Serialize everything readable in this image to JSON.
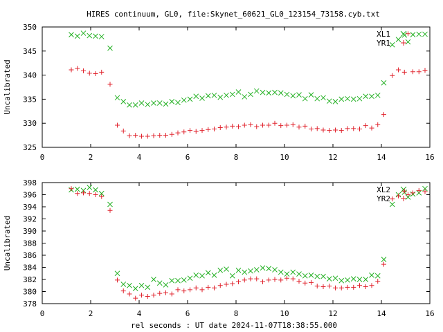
{
  "title": "HIRES continuum, GL0, file:Skynet_60621_GL0_123154_73158.cyb.txt",
  "xlabel": "rel seconds : UT date 2024-11-07T18:38:55.000",
  "chart_data": [
    {
      "type": "scatter",
      "ylabel": "Uncalibrated",
      "xlim": [
        0,
        16
      ],
      "ylim": [
        325,
        350
      ],
      "xticks": [
        0,
        2,
        4,
        6,
        8,
        10,
        12,
        14,
        16
      ],
      "yticks": [
        325,
        330,
        335,
        340,
        345,
        350
      ],
      "legend_position": "top-right",
      "series": [
        {
          "name": "XL1",
          "marker": "x",
          "color": "#22b022",
          "x": [
            1.2,
            1.45,
            1.7,
            1.95,
            2.2,
            2.45,
            2.8,
            3.1,
            3.35,
            3.6,
            3.85,
            4.1,
            4.35,
            4.6,
            4.85,
            5.1,
            5.35,
            5.6,
            5.85,
            6.1,
            6.35,
            6.6,
            6.85,
            7.1,
            7.35,
            7.6,
            7.85,
            8.1,
            8.35,
            8.6,
            8.85,
            9.1,
            9.35,
            9.6,
            9.85,
            10.1,
            10.35,
            10.6,
            10.85,
            11.1,
            11.35,
            11.6,
            11.85,
            12.1,
            12.35,
            12.6,
            12.85,
            13.1,
            13.35,
            13.6,
            13.85,
            14.1,
            14.45,
            14.7,
            14.95,
            15.1,
            15.3,
            15.55,
            15.8
          ],
          "y": [
            348.4,
            348.1,
            348.7,
            348.2,
            348.1,
            348.0,
            345.6,
            335.3,
            334.5,
            333.8,
            333.8,
            334.2,
            333.9,
            334.2,
            334.2,
            334.0,
            334.5,
            334.3,
            334.8,
            335.0,
            335.6,
            335.2,
            335.7,
            335.8,
            335.4,
            335.8,
            336.0,
            336.5,
            335.5,
            336.0,
            336.7,
            336.4,
            336.3,
            336.4,
            336.3,
            336.0,
            335.7,
            335.9,
            335.1,
            335.9,
            335.1,
            335.3,
            334.6,
            334.5,
            335.0,
            335.1,
            335.0,
            335.1,
            335.6,
            335.6,
            335.8,
            338.4,
            346.3,
            347.4,
            348.3,
            346.9,
            348.4,
            348.5,
            348.5
          ]
        },
        {
          "name": "YR1",
          "marker": "+",
          "color": "#e0232d",
          "x": [
            1.2,
            1.45,
            1.7,
            1.95,
            2.2,
            2.45,
            2.8,
            3.1,
            3.35,
            3.6,
            3.85,
            4.1,
            4.35,
            4.6,
            4.85,
            5.1,
            5.35,
            5.6,
            5.85,
            6.1,
            6.35,
            6.6,
            6.85,
            7.1,
            7.35,
            7.6,
            7.85,
            8.1,
            8.35,
            8.6,
            8.85,
            9.1,
            9.35,
            9.6,
            9.85,
            10.1,
            10.35,
            10.6,
            10.85,
            11.1,
            11.35,
            11.6,
            11.85,
            12.1,
            12.35,
            12.6,
            12.85,
            13.1,
            13.35,
            13.6,
            13.85,
            14.1,
            14.45,
            14.7,
            14.95,
            15.1,
            15.3,
            15.55,
            15.8
          ],
          "y": [
            341.1,
            341.4,
            340.9,
            340.4,
            340.3,
            340.6,
            338.1,
            329.6,
            328.4,
            327.4,
            327.5,
            327.3,
            327.3,
            327.4,
            327.5,
            327.5,
            327.7,
            328.0,
            328.2,
            328.5,
            328.3,
            328.5,
            328.7,
            328.8,
            329.1,
            329.2,
            329.4,
            329.3,
            329.6,
            329.7,
            329.3,
            329.6,
            329.6,
            330.0,
            329.5,
            329.6,
            329.7,
            329.2,
            329.4,
            328.8,
            328.9,
            328.6,
            328.5,
            328.6,
            328.5,
            328.9,
            328.9,
            328.8,
            329.5,
            329.0,
            329.7,
            331.8,
            339.9,
            341.1,
            340.6,
            348.6,
            340.7,
            340.7,
            341.0
          ]
        }
      ]
    },
    {
      "type": "scatter",
      "ylabel": "Uncalibrated",
      "xlim": [
        0,
        16
      ],
      "ylim": [
        378,
        398
      ],
      "xticks": [
        0,
        2,
        4,
        6,
        8,
        10,
        12,
        14,
        16
      ],
      "yticks": [
        378,
        380,
        382,
        384,
        386,
        388,
        390,
        392,
        394,
        396,
        398
      ],
      "legend_position": "top-right",
      "series": [
        {
          "name": "XL2",
          "marker": "x",
          "color": "#22b022",
          "x": [
            1.2,
            1.45,
            1.7,
            1.95,
            2.2,
            2.45,
            2.8,
            3.1,
            3.35,
            3.6,
            3.85,
            4.1,
            4.35,
            4.6,
            4.85,
            5.1,
            5.35,
            5.6,
            5.85,
            6.1,
            6.35,
            6.6,
            6.85,
            7.1,
            7.35,
            7.6,
            7.85,
            8.1,
            8.35,
            8.6,
            8.85,
            9.1,
            9.35,
            9.6,
            9.85,
            10.1,
            10.35,
            10.6,
            10.85,
            11.1,
            11.35,
            11.6,
            11.85,
            12.1,
            12.35,
            12.6,
            12.85,
            13.1,
            13.35,
            13.6,
            13.85,
            14.1,
            14.45,
            14.7,
            14.95,
            15.1,
            15.3,
            15.55,
            15.8
          ],
          "y": [
            396.8,
            396.9,
            396.7,
            397.2,
            396.8,
            396.2,
            394.4,
            383.0,
            381.2,
            381.0,
            380.5,
            381.0,
            380.7,
            382.0,
            381.4,
            381.1,
            381.8,
            381.8,
            381.9,
            382.2,
            382.7,
            382.6,
            383.1,
            382.7,
            383.5,
            383.7,
            382.6,
            383.5,
            383.2,
            383.4,
            383.6,
            383.9,
            383.8,
            383.6,
            383.2,
            382.9,
            383.2,
            382.9,
            382.6,
            382.7,
            382.5,
            382.5,
            382.1,
            382.2,
            381.8,
            381.9,
            382.1,
            382.0,
            382.0,
            382.7,
            382.6,
            385.3,
            394.4,
            396.0,
            396.4,
            395.6,
            396.1,
            396.3,
            397.0
          ]
        },
        {
          "name": "YR2",
          "marker": "+",
          "color": "#e0232d",
          "x": [
            1.2,
            1.45,
            1.7,
            1.95,
            2.2,
            2.45,
            2.8,
            3.1,
            3.35,
            3.6,
            3.85,
            4.1,
            4.35,
            4.6,
            4.85,
            5.1,
            5.35,
            5.6,
            5.85,
            6.1,
            6.35,
            6.6,
            6.85,
            7.1,
            7.35,
            7.6,
            7.85,
            8.1,
            8.35,
            8.6,
            8.85,
            9.1,
            9.35,
            9.6,
            9.85,
            10.1,
            10.35,
            10.6,
            10.85,
            11.1,
            11.35,
            11.6,
            11.85,
            12.1,
            12.35,
            12.6,
            12.85,
            13.1,
            13.35,
            13.6,
            13.85,
            14.1,
            14.45,
            14.7,
            14.95,
            15.1,
            15.3,
            15.55,
            15.8
          ],
          "y": [
            397.0,
            396.2,
            396.3,
            396.2,
            396.0,
            395.7,
            393.4,
            381.9,
            380.1,
            379.6,
            378.9,
            379.4,
            379.2,
            379.4,
            379.7,
            379.8,
            379.6,
            380.3,
            380.1,
            380.3,
            380.6,
            380.3,
            380.7,
            380.6,
            381.0,
            381.2,
            381.3,
            381.6,
            381.9,
            382.1,
            382.1,
            381.6,
            381.9,
            382.0,
            381.9,
            382.2,
            382.1,
            381.7,
            381.4,
            381.5,
            380.9,
            380.8,
            380.9,
            380.6,
            380.6,
            380.7,
            380.7,
            381.0,
            380.8,
            381.0,
            381.7,
            384.5,
            395.3,
            395.8,
            396.6,
            396.0,
            396.3,
            396.7,
            396.5
          ]
        }
      ]
    }
  ]
}
